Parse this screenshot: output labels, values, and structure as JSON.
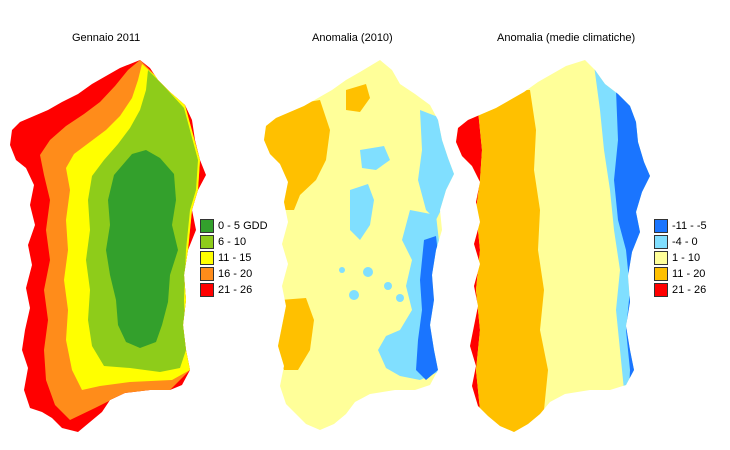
{
  "panels": [
    {
      "title": "Gennaio 2011",
      "legend": [
        {
          "label": "0 - 5 GDD",
          "color": "#33a02c"
        },
        {
          "label": "6 - 10",
          "color": "#8ecc1a"
        },
        {
          "label": "11 - 15",
          "color": "#ffff00"
        },
        {
          "label": "16 - 20",
          "color": "#ff8c1a"
        },
        {
          "label": "21 - 26",
          "color": "#ff0000"
        }
      ]
    },
    {
      "title": "Anomalia (2010)",
      "legend": []
    },
    {
      "title": "Anomalia (medie climatiche)",
      "legend": [
        {
          "label": "-11 - -5",
          "color": "#1a75ff"
        },
        {
          "label": "-4 - 0",
          "color": "#80dfff"
        },
        {
          "label": "1 - 10",
          "color": "#ffff99"
        },
        {
          "label": "11 - 20",
          "color": "#ffc000"
        },
        {
          "label": "21 - 26",
          "color": "#ff0000"
        }
      ]
    }
  ],
  "map_colors": {
    "green_dark": "#33a02c",
    "green_light": "#8ecc1a",
    "yellow": "#ffff00",
    "orange": "#ff8c1a",
    "red": "#ff0000",
    "blue_dark": "#1a75ff",
    "blue_light": "#80dfff",
    "pale_yellow": "#ffff99",
    "amber": "#ffc000"
  }
}
